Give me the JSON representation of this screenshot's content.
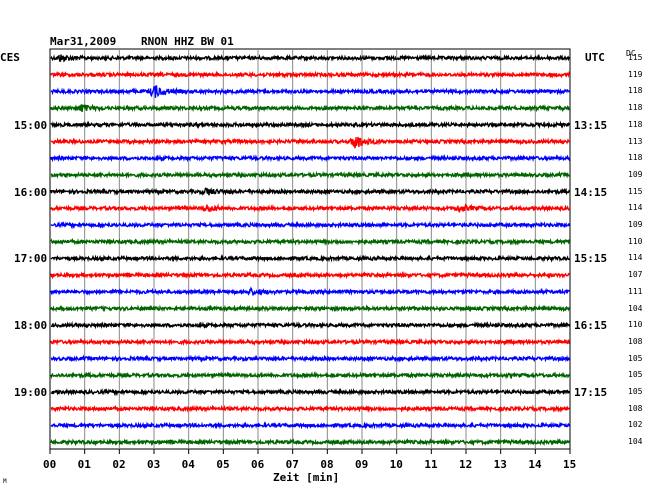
{
  "header": {
    "date": "Mar31,2009",
    "station": "RNON HHZ BW 01",
    "left_label": "CES",
    "right_label": "UTC",
    "dc_label": "DC"
  },
  "footer": {
    "xlabel": "Zeit [min]",
    "corner_mark": "M"
  },
  "chart_data": {
    "type": "line",
    "title": "Mar31,2009 RNON HHZ BW 01",
    "xlabel": "Zeit [min]",
    "xlim": [
      0,
      15
    ],
    "x_ticks": [
      "00",
      "01",
      "02",
      "03",
      "04",
      "05",
      "06",
      "07",
      "08",
      "09",
      "10",
      "11",
      "12",
      "13",
      "14",
      "15"
    ],
    "grid": true,
    "trace_colors": [
      "#000000",
      "#ff0000",
      "#0000ff",
      "#006400"
    ],
    "left_time_labels": [
      {
        "row": 4,
        "label": "15:00"
      },
      {
        "row": 8,
        "label": "16:00"
      },
      {
        "row": 12,
        "label": "17:00"
      },
      {
        "row": 16,
        "label": "18:00"
      },
      {
        "row": 20,
        "label": "19:00"
      }
    ],
    "right_time_labels": [
      {
        "row": 4,
        "label": "13:15"
      },
      {
        "row": 8,
        "label": "14:15"
      },
      {
        "row": 12,
        "label": "15:15"
      },
      {
        "row": 16,
        "label": "16:15"
      },
      {
        "row": 20,
        "label": "17:15"
      }
    ],
    "dc_offsets": [
      "115",
      "119",
      "118",
      "118",
      "118",
      "113",
      "118",
      "109",
      "115",
      "114",
      "109",
      "110",
      "114",
      "107",
      "111",
      "104",
      "110",
      "108",
      "105",
      "105",
      "105",
      "108",
      "102",
      "104"
    ],
    "events": [
      {
        "row": 2,
        "minute": 3.0,
        "amplitude": 6
      },
      {
        "row": 5,
        "minute": 8.8,
        "amplitude": 7
      },
      {
        "row": 0,
        "minute": 0.3,
        "amplitude": 3
      },
      {
        "row": 3,
        "minute": 0.9,
        "amplitude": 3
      },
      {
        "row": 8,
        "minute": 4.5,
        "amplitude": 3
      },
      {
        "row": 9,
        "minute": 4.5,
        "amplitude": 3
      },
      {
        "row": 9,
        "minute": 11.8,
        "amplitude": 3
      },
      {
        "row": 14,
        "minute": 5.8,
        "amplitude": 2.5
      }
    ]
  }
}
